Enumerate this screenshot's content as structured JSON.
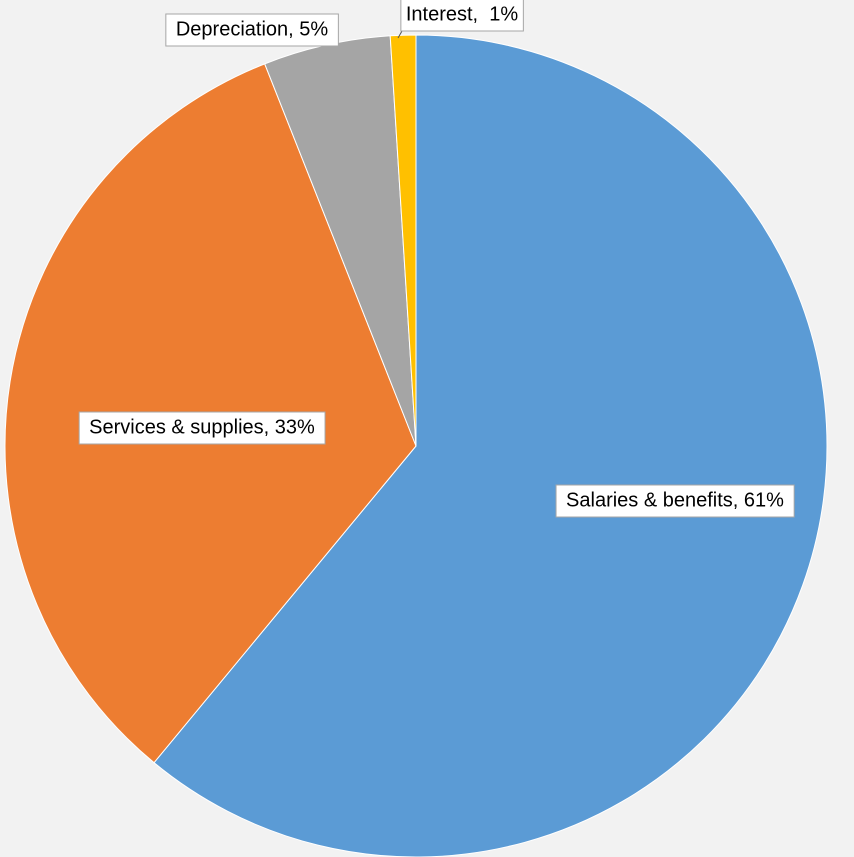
{
  "chart_data": {
    "type": "pie",
    "values": [
      61,
      33,
      5,
      1
    ],
    "value_labels": [
      "Salaries & benefits, 61%",
      "Services & supplies, 33%",
      "Depreciation, 5%",
      "Interest,  1%"
    ],
    "colors": [
      "#5b9bd5",
      "#ed7d31",
      "#a5a5a5",
      "#ffc000"
    ]
  }
}
